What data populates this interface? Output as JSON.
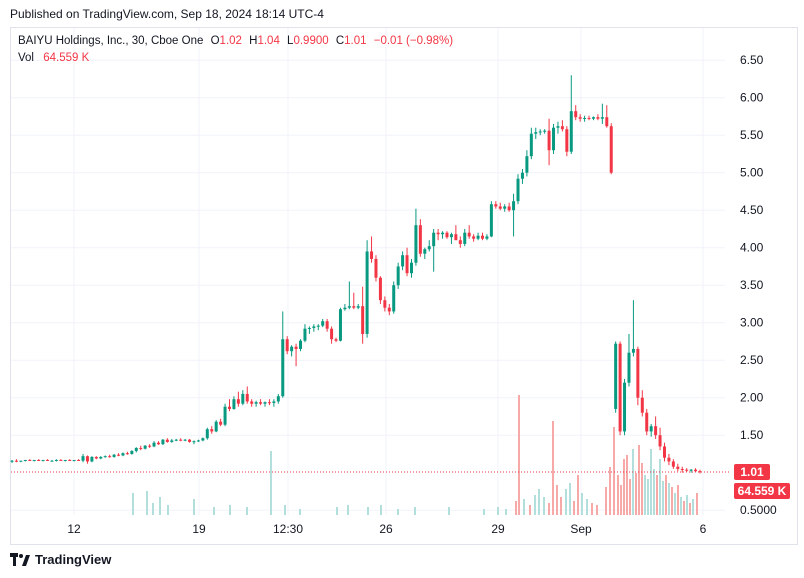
{
  "header": {
    "published": "Published on TradingView.com, Sep 18, 2024 18:14 UTC-4"
  },
  "legend": {
    "symbol": "BAIYU Holdings, Inc., 30, Cboe One",
    "o_label": "O",
    "o_value": "1.02",
    "h_label": "H",
    "h_value": "1.04",
    "l_label": "L",
    "l_value": "0.9900",
    "c_label": "C",
    "c_value": "1.01",
    "change": "−0.01 (−0.98%)",
    "vol_label": "Vol",
    "vol_value": "64.559 K"
  },
  "footer": {
    "brand": "TradingView"
  },
  "colors": {
    "up": "#089981",
    "down": "#f23645",
    "vol_up": "#b2dfdb",
    "vol_down": "#f7a9a7"
  },
  "chart_data": {
    "type": "candlestick",
    "y_ticks": [
      "6.50",
      "6.00",
      "5.50",
      "5.00",
      "4.50",
      "4.00",
      "3.50",
      "3.00",
      "2.50",
      "2.00",
      "1.50",
      "0.5000"
    ],
    "x_ticks": [
      "12",
      "19",
      "12:30",
      "26",
      "29",
      "Sep",
      "6"
    ],
    "ylim": [
      0.4,
      6.9
    ],
    "last_price": "1.01",
    "last_volume": "64.559 K",
    "grid": true,
    "candles": [
      [
        1.15,
        1.17,
        1.13,
        1.16
      ],
      [
        1.16,
        1.18,
        1.14,
        1.15
      ],
      [
        1.15,
        1.16,
        1.14,
        1.16
      ],
      [
        1.16,
        1.17,
        1.15,
        1.17
      ],
      [
        1.17,
        1.18,
        1.16,
        1.16
      ],
      [
        1.16,
        1.17,
        1.15,
        1.17
      ],
      [
        1.17,
        1.18,
        1.16,
        1.16
      ],
      [
        1.16,
        1.17,
        1.15,
        1.17
      ],
      [
        1.17,
        1.18,
        1.16,
        1.16
      ],
      [
        1.16,
        1.17,
        1.15,
        1.16
      ],
      [
        1.16,
        1.18,
        1.15,
        1.17
      ],
      [
        1.17,
        1.18,
        1.16,
        1.16
      ],
      [
        1.16,
        1.17,
        1.15,
        1.17
      ],
      [
        1.17,
        1.18,
        1.16,
        1.16
      ],
      [
        1.16,
        1.17,
        1.15,
        1.17
      ],
      [
        1.17,
        1.18,
        1.16,
        1.16
      ],
      [
        1.16,
        1.25,
        1.14,
        1.22
      ],
      [
        1.22,
        1.23,
        1.12,
        1.15
      ],
      [
        1.15,
        1.22,
        1.14,
        1.21
      ],
      [
        1.21,
        1.22,
        1.18,
        1.19
      ],
      [
        1.19,
        1.22,
        1.18,
        1.21
      ],
      [
        1.21,
        1.23,
        1.2,
        1.22
      ],
      [
        1.22,
        1.24,
        1.2,
        1.21
      ],
      [
        1.21,
        1.25,
        1.2,
        1.24
      ],
      [
        1.24,
        1.26,
        1.22,
        1.23
      ],
      [
        1.23,
        1.27,
        1.22,
        1.26
      ],
      [
        1.26,
        1.28,
        1.24,
        1.25
      ],
      [
        1.25,
        1.3,
        1.24,
        1.29
      ],
      [
        1.29,
        1.34,
        1.27,
        1.33
      ],
      [
        1.33,
        1.36,
        1.3,
        1.32
      ],
      [
        1.32,
        1.37,
        1.31,
        1.36
      ],
      [
        1.36,
        1.38,
        1.33,
        1.35
      ],
      [
        1.35,
        1.42,
        1.34,
        1.4
      ],
      [
        1.4,
        1.42,
        1.37,
        1.38
      ],
      [
        1.38,
        1.45,
        1.37,
        1.44
      ],
      [
        1.44,
        1.46,
        1.4,
        1.41
      ],
      [
        1.41,
        1.45,
        1.4,
        1.43
      ],
      [
        1.43,
        1.45,
        1.42,
        1.44
      ],
      [
        1.44,
        1.46,
        1.42,
        1.43
      ],
      [
        1.43,
        1.45,
        1.42,
        1.44
      ],
      [
        1.44,
        1.45,
        1.4,
        1.41
      ],
      [
        1.41,
        1.43,
        1.38,
        1.42
      ],
      [
        1.42,
        1.44,
        1.41,
        1.43
      ],
      [
        1.43,
        1.47,
        1.42,
        1.46
      ],
      [
        1.46,
        1.6,
        1.44,
        1.58
      ],
      [
        1.58,
        1.62,
        1.52,
        1.55
      ],
      [
        1.55,
        1.7,
        1.54,
        1.68
      ],
      [
        1.68,
        1.72,
        1.62,
        1.64
      ],
      [
        1.64,
        1.92,
        1.62,
        1.88
      ],
      [
        1.88,
        1.98,
        1.82,
        1.85
      ],
      [
        1.85,
        2.02,
        1.84,
        1.98
      ],
      [
        1.98,
        2.08,
        1.88,
        1.92
      ],
      [
        1.92,
        2.1,
        1.9,
        2.05
      ],
      [
        2.05,
        2.15,
        1.92,
        1.95
      ],
      [
        1.95,
        1.98,
        1.88,
        1.92
      ],
      [
        1.92,
        1.96,
        1.88,
        1.94
      ],
      [
        1.94,
        1.98,
        1.9,
        1.92
      ],
      [
        1.92,
        1.95,
        1.88,
        1.94
      ],
      [
        1.94,
        1.98,
        1.9,
        1.93
      ],
      [
        1.93,
        1.98,
        1.88,
        1.95
      ],
      [
        1.95,
        2.05,
        1.92,
        2.02
      ],
      [
        2.02,
        3.15,
        2.0,
        2.78
      ],
      [
        2.78,
        2.82,
        2.58,
        2.62
      ],
      [
        2.62,
        2.7,
        2.55,
        2.68
      ],
      [
        2.68,
        2.72,
        2.42,
        2.65
      ],
      [
        2.65,
        2.78,
        2.62,
        2.76
      ],
      [
        2.76,
        2.98,
        2.74,
        2.92
      ],
      [
        2.92,
        2.95,
        2.85,
        2.93
      ],
      [
        2.93,
        2.98,
        2.88,
        2.95
      ],
      [
        2.95,
        2.98,
        2.9,
        2.96
      ],
      [
        2.96,
        3.05,
        2.94,
        3.02
      ],
      [
        3.02,
        3.05,
        2.88,
        2.92
      ],
      [
        2.92,
        2.95,
        2.72,
        2.78
      ],
      [
        2.78,
        2.8,
        2.74,
        2.76
      ],
      [
        2.76,
        3.2,
        2.75,
        3.18
      ],
      [
        3.18,
        3.25,
        3.16,
        3.2
      ],
      [
        3.2,
        3.55,
        3.18,
        3.22
      ],
      [
        3.22,
        3.4,
        3.18,
        3.2
      ],
      [
        3.2,
        3.25,
        3.18,
        3.22
      ],
      [
        3.22,
        3.48,
        2.72,
        2.85
      ],
      [
        2.85,
        4.1,
        2.8,
        3.95
      ],
      [
        3.95,
        4.15,
        3.8,
        3.85
      ],
      [
        3.85,
        3.9,
        3.55,
        3.6
      ],
      [
        3.6,
        3.62,
        3.25,
        3.3
      ],
      [
        3.3,
        3.35,
        3.15,
        3.2
      ],
      [
        3.2,
        3.25,
        3.1,
        3.15
      ],
      [
        3.15,
        3.55,
        3.12,
        3.5
      ],
      [
        3.5,
        3.8,
        3.45,
        3.75
      ],
      [
        3.75,
        3.95,
        3.7,
        3.9
      ],
      [
        3.9,
        4.0,
        3.62,
        3.66
      ],
      [
        3.66,
        3.85,
        3.6,
        3.8
      ],
      [
        3.8,
        4.52,
        3.76,
        4.3
      ],
      [
        4.3,
        4.38,
        3.88,
        3.92
      ],
      [
        3.92,
        4.0,
        3.85,
        3.98
      ],
      [
        3.98,
        4.1,
        3.95,
        4.02
      ],
      [
        4.02,
        4.25,
        3.68,
        4.2
      ],
      [
        4.2,
        4.25,
        4.1,
        4.18
      ],
      [
        4.18,
        4.22,
        4.12,
        4.2
      ],
      [
        4.2,
        4.22,
        4.12,
        4.14
      ],
      [
        4.14,
        4.2,
        4.05,
        4.18
      ],
      [
        4.18,
        4.3,
        4.15,
        4.1
      ],
      [
        4.1,
        4.15,
        4.0,
        4.05
      ],
      [
        4.05,
        4.25,
        4.02,
        4.2
      ],
      [
        4.2,
        4.3,
        4.12,
        4.15
      ],
      [
        4.15,
        4.18,
        4.08,
        4.12
      ],
      [
        4.12,
        4.2,
        4.1,
        4.16
      ],
      [
        4.16,
        4.2,
        4.1,
        4.12
      ],
      [
        4.12,
        4.18,
        4.1,
        4.15
      ],
      [
        4.15,
        4.62,
        4.14,
        4.58
      ],
      [
        4.58,
        4.62,
        4.52,
        4.55
      ],
      [
        4.55,
        4.6,
        4.5,
        4.52
      ],
      [
        4.52,
        4.58,
        4.48,
        4.55
      ],
      [
        4.55,
        4.6,
        4.48,
        4.5
      ],
      [
        4.5,
        4.72,
        4.15,
        4.62
      ],
      [
        4.62,
        4.98,
        4.58,
        4.92
      ],
      [
        4.92,
        5.05,
        4.85,
        5.0
      ],
      [
        5.0,
        5.3,
        4.95,
        5.22
      ],
      [
        5.22,
        5.6,
        5.18,
        5.52
      ],
      [
        5.52,
        5.6,
        5.45,
        5.54
      ],
      [
        5.54,
        5.58,
        5.5,
        5.55
      ],
      [
        5.55,
        5.58,
        5.52,
        5.56
      ],
      [
        5.56,
        5.72,
        5.1,
        5.3
      ],
      [
        5.3,
        5.65,
        5.25,
        5.6
      ],
      [
        5.6,
        5.68,
        5.52,
        5.62
      ],
      [
        5.62,
        5.7,
        5.55,
        5.58
      ],
      [
        5.58,
        5.62,
        5.22,
        5.28
      ],
      [
        5.28,
        6.3,
        5.25,
        5.82
      ],
      [
        5.82,
        5.9,
        5.7,
        5.74
      ],
      [
        5.74,
        5.78,
        5.68,
        5.72
      ],
      [
        5.72,
        5.76,
        5.68,
        5.73
      ],
      [
        5.73,
        5.76,
        5.7,
        5.72
      ],
      [
        5.72,
        5.75,
        5.7,
        5.74
      ],
      [
        5.74,
        5.78,
        5.7,
        5.72
      ],
      [
        5.72,
        5.92,
        5.65,
        5.74
      ],
      [
        5.74,
        5.9,
        5.6,
        5.62
      ],
      [
        5.62,
        5.66,
        4.98,
        5.0
      ],
      [
        1.85,
        2.75,
        1.8,
        2.72
      ],
      [
        2.72,
        2.75,
        1.5,
        1.55
      ],
      [
        1.55,
        2.25,
        1.5,
        2.2
      ],
      [
        2.2,
        2.85,
        2.15,
        2.6
      ],
      [
        2.6,
        3.3,
        2.55,
        2.65
      ],
      [
        2.65,
        2.68,
        1.9,
        2.0
      ],
      [
        2.0,
        2.1,
        1.75,
        1.8
      ],
      [
        1.8,
        1.85,
        1.5,
        1.55
      ],
      [
        1.55,
        1.65,
        1.48,
        1.62
      ],
      [
        1.62,
        1.75,
        1.45,
        1.5
      ],
      [
        1.5,
        1.6,
        1.3,
        1.35
      ],
      [
        1.35,
        1.4,
        1.15,
        1.2
      ],
      [
        1.2,
        1.25,
        1.1,
        1.15
      ],
      [
        1.15,
        1.18,
        1.05,
        1.08
      ],
      [
        1.08,
        1.12,
        1.02,
        1.05
      ],
      [
        1.05,
        1.08,
        1.0,
        1.04
      ],
      [
        1.04,
        1.06,
        1.01,
        1.03
      ],
      [
        1.03,
        1.05,
        1.0,
        1.04
      ],
      [
        1.04,
        1.06,
        1.01,
        1.02
      ],
      [
        1.02,
        1.04,
        0.99,
        1.01
      ]
    ],
    "volume_marks": [
      [
        133,
        22,
        "up"
      ],
      [
        147,
        24,
        "up"
      ],
      [
        153,
        12,
        "up"
      ],
      [
        160,
        18,
        "up"
      ],
      [
        168,
        10,
        "up"
      ],
      [
        194,
        16,
        "up"
      ],
      [
        214,
        8,
        "up"
      ],
      [
        230,
        10,
        "up"
      ],
      [
        247,
        8,
        "up"
      ],
      [
        271,
        64,
        "up"
      ],
      [
        285,
        10,
        "up"
      ],
      [
        300,
        6,
        "up"
      ],
      [
        337,
        8,
        "up"
      ],
      [
        348,
        10,
        "up"
      ],
      [
        368,
        8,
        "up"
      ],
      [
        381,
        10,
        "up"
      ],
      [
        398,
        6,
        "up"
      ],
      [
        415,
        8,
        "up"
      ],
      [
        449,
        8,
        "up"
      ],
      [
        484,
        6,
        "up"
      ],
      [
        498,
        8,
        "up"
      ],
      [
        506,
        6,
        "up"
      ],
      [
        516,
        14,
        "down"
      ],
      [
        519,
        120,
        "down"
      ],
      [
        524,
        16,
        "up"
      ],
      [
        530,
        10,
        "down"
      ],
      [
        535,
        20,
        "up"
      ],
      [
        539,
        26,
        "up"
      ],
      [
        544,
        18,
        "up"
      ],
      [
        549,
        12,
        "down"
      ],
      [
        553,
        94,
        "down"
      ],
      [
        557,
        30,
        "down"
      ],
      [
        561,
        18,
        "down"
      ],
      [
        566,
        26,
        "up"
      ],
      [
        570,
        32,
        "up"
      ],
      [
        574,
        14,
        "down"
      ],
      [
        578,
        40,
        "down"
      ],
      [
        582,
        22,
        "up"
      ],
      [
        587,
        16,
        "up"
      ],
      [
        592,
        12,
        "down"
      ],
      [
        597,
        10,
        "down"
      ],
      [
        606,
        28,
        "down"
      ],
      [
        610,
        48,
        "down"
      ],
      [
        614,
        88,
        "down"
      ],
      [
        618,
        40,
        "down"
      ],
      [
        621,
        30,
        "down"
      ],
      [
        624,
        56,
        "down"
      ],
      [
        627,
        60,
        "down"
      ],
      [
        630,
        36,
        "down"
      ],
      [
        633,
        66,
        "up"
      ],
      [
        636,
        42,
        "down"
      ],
      [
        639,
        70,
        "down"
      ],
      [
        642,
        52,
        "down"
      ],
      [
        645,
        40,
        "up"
      ],
      [
        648,
        36,
        "up"
      ],
      [
        651,
        66,
        "up"
      ],
      [
        654,
        46,
        "up"
      ],
      [
        657,
        40,
        "down"
      ],
      [
        660,
        56,
        "up"
      ],
      [
        663,
        34,
        "up"
      ],
      [
        666,
        40,
        "down"
      ],
      [
        669,
        32,
        "up"
      ],
      [
        672,
        28,
        "down"
      ],
      [
        675,
        22,
        "up"
      ],
      [
        678,
        30,
        "down"
      ],
      [
        681,
        18,
        "up"
      ],
      [
        684,
        14,
        "down"
      ],
      [
        687,
        20,
        "up"
      ],
      [
        690,
        12,
        "down"
      ],
      [
        693,
        16,
        "up"
      ],
      [
        697,
        22,
        "down"
      ]
    ]
  }
}
